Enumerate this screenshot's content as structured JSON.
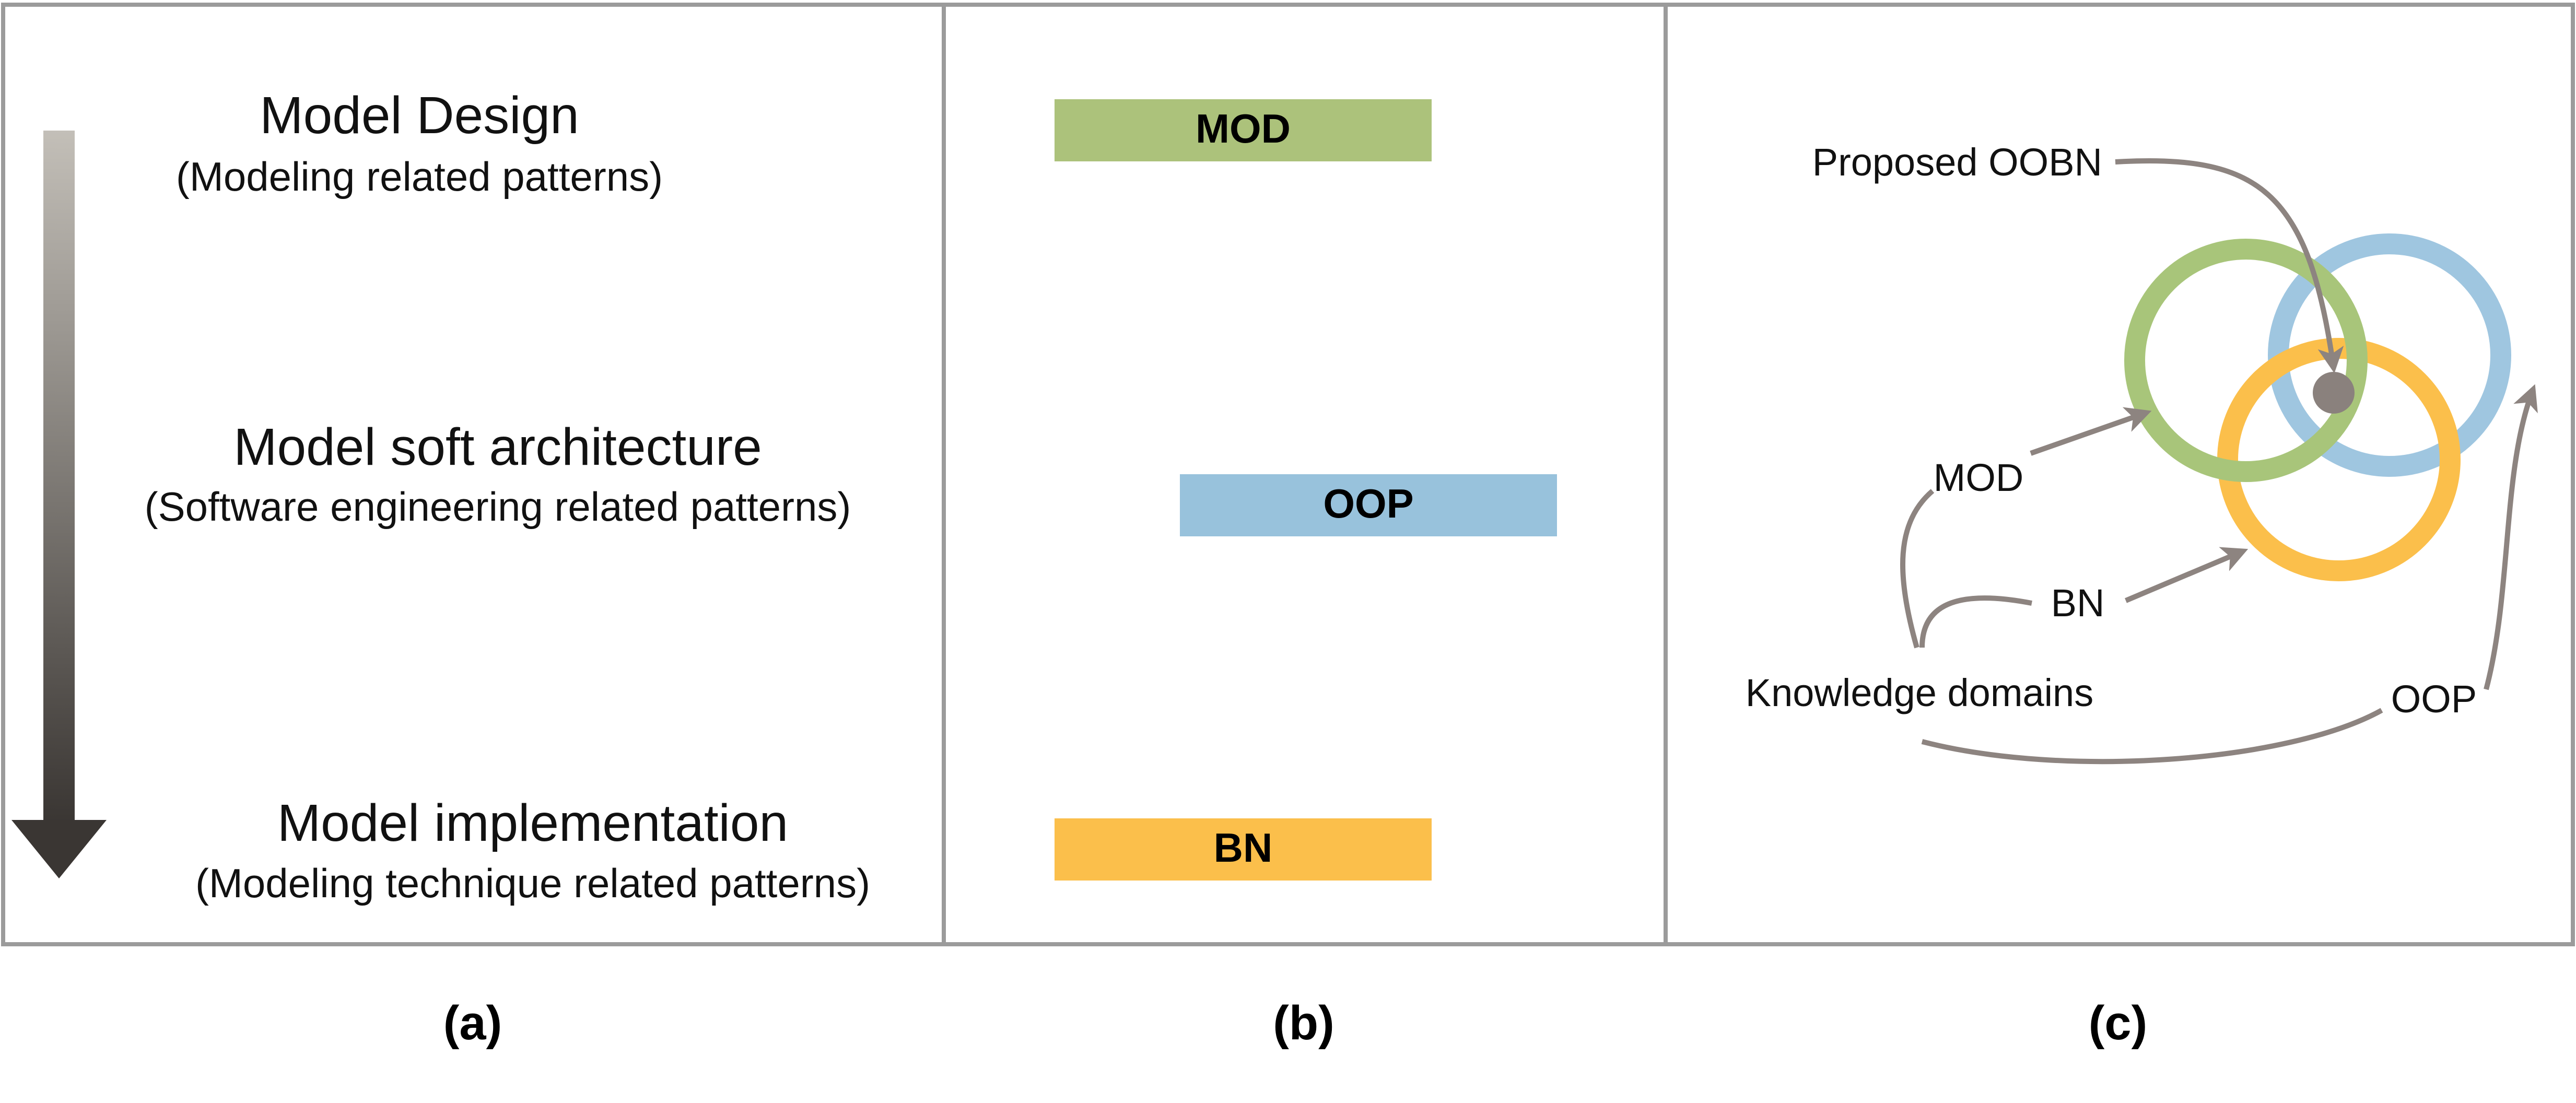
{
  "panel_a": {
    "levels": [
      {
        "title": "Model Design",
        "subtitle": "(Modeling related patterns)"
      },
      {
        "title": "Model soft architecture",
        "subtitle": "(Software engineering related patterns)"
      },
      {
        "title": "Model implementation",
        "subtitle": "(Modeling technique related patterns)"
      }
    ],
    "caption": "(a)"
  },
  "panel_b": {
    "bars": [
      {
        "label": "MOD",
        "color": "#acc27b"
      },
      {
        "label": "OOP",
        "color": "#98c2dc"
      },
      {
        "label": "BN",
        "color": "#fbbf4b"
      }
    ],
    "caption": "(b)"
  },
  "panel_c": {
    "proposed_label": "Proposed OOBN",
    "source_label": "Knowledge domains",
    "domains": [
      {
        "label": "MOD",
        "color": "#a8c57a"
      },
      {
        "label": "BN",
        "color": "#fbbf4b"
      },
      {
        "label": "OOP",
        "color": "#9fc6e0"
      }
    ],
    "intersection_color": "#8a817d",
    "arrow_color": "#8d8480",
    "caption": "(c)"
  },
  "colors": {
    "frame": "#9b9b9b",
    "gradient_top": "#c3bfb8",
    "gradient_bottom": "#3a3633"
  }
}
